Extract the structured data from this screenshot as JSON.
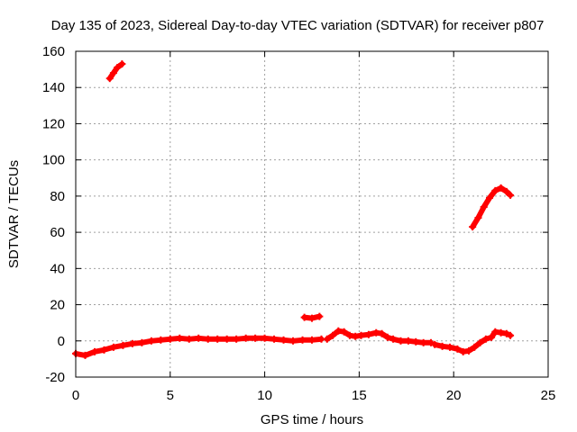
{
  "chart_data": {
    "type": "scatter",
    "title": "Day 135 of 2023, Sidereal Day-to-day VTEC variation (SDTVAR) for receiver p807",
    "xlabel": "GPS time / hours",
    "ylabel": "SDTVAR / TECUs",
    "xlim": [
      0,
      25
    ],
    "ylim": [
      -20,
      160
    ],
    "xticks": [
      0,
      5,
      10,
      15,
      20,
      25
    ],
    "yticks": [
      -20,
      0,
      20,
      40,
      60,
      80,
      100,
      120,
      140,
      160
    ],
    "grid": true,
    "colors": {
      "data": "#ff0000",
      "grid": "#a0a0a0",
      "axes": "#000000"
    },
    "series": [
      {
        "name": "segment-1",
        "points": [
          [
            1.8,
            145
          ],
          [
            2.0,
            148
          ],
          [
            2.2,
            151
          ],
          [
            2.45,
            153
          ]
        ]
      },
      {
        "name": "segment-2",
        "points": [
          [
            0.0,
            -7
          ],
          [
            0.5,
            -8
          ],
          [
            1.0,
            -6
          ],
          [
            1.5,
            -5
          ],
          [
            2.0,
            -3.5
          ],
          [
            2.5,
            -2.5
          ],
          [
            3.0,
            -1.5
          ],
          [
            3.5,
            -1
          ],
          [
            4.0,
            0
          ],
          [
            4.5,
            0.5
          ],
          [
            5.0,
            1
          ],
          [
            5.5,
            1.5
          ],
          [
            6.0,
            1
          ],
          [
            6.5,
            1.5
          ],
          [
            7.0,
            1
          ],
          [
            7.5,
            1
          ],
          [
            8.0,
            1
          ],
          [
            8.5,
            1
          ],
          [
            9.0,
            1.5
          ],
          [
            9.5,
            1.5
          ],
          [
            10.0,
            1.5
          ],
          [
            10.5,
            1
          ],
          [
            11.0,
            0.5
          ],
          [
            11.5,
            0
          ],
          [
            12.0,
            0.5
          ],
          [
            12.5,
            0.5
          ],
          [
            13.0,
            1
          ]
        ]
      },
      {
        "name": "segment-3",
        "points": [
          [
            12.1,
            13
          ],
          [
            12.5,
            12.5
          ],
          [
            12.9,
            13.5
          ]
        ]
      },
      {
        "name": "segment-4",
        "points": [
          [
            13.3,
            1
          ],
          [
            13.6,
            3
          ],
          [
            13.9,
            5.5
          ],
          [
            14.2,
            5
          ],
          [
            14.5,
            3
          ],
          [
            14.8,
            2.5
          ],
          [
            15.1,
            3
          ],
          [
            15.5,
            3.5
          ],
          [
            15.9,
            4.5
          ],
          [
            16.2,
            4
          ],
          [
            16.5,
            2
          ],
          [
            16.8,
            1
          ],
          [
            17.2,
            0
          ],
          [
            17.6,
            0
          ],
          [
            18.0,
            -0.5
          ],
          [
            18.4,
            -1
          ],
          [
            18.8,
            -1
          ]
        ]
      },
      {
        "name": "segment-5",
        "points": [
          [
            19.0,
            -2
          ],
          [
            19.4,
            -3
          ],
          [
            19.8,
            -3.5
          ],
          [
            20.2,
            -4.5
          ],
          [
            20.5,
            -6
          ],
          [
            20.8,
            -5.5
          ],
          [
            21.1,
            -3.5
          ],
          [
            21.4,
            -1
          ],
          [
            21.7,
            1
          ],
          [
            22.0,
            2
          ],
          [
            22.2,
            5
          ],
          [
            22.5,
            4.5
          ],
          [
            22.8,
            4
          ],
          [
            23.0,
            3
          ]
        ]
      },
      {
        "name": "segment-6",
        "points": [
          [
            21.0,
            63
          ],
          [
            21.3,
            68
          ],
          [
            21.6,
            74
          ],
          [
            21.9,
            79
          ],
          [
            22.2,
            83
          ],
          [
            22.5,
            84.5
          ],
          [
            22.8,
            82.5
          ],
          [
            23.0,
            80.5
          ]
        ]
      }
    ]
  }
}
